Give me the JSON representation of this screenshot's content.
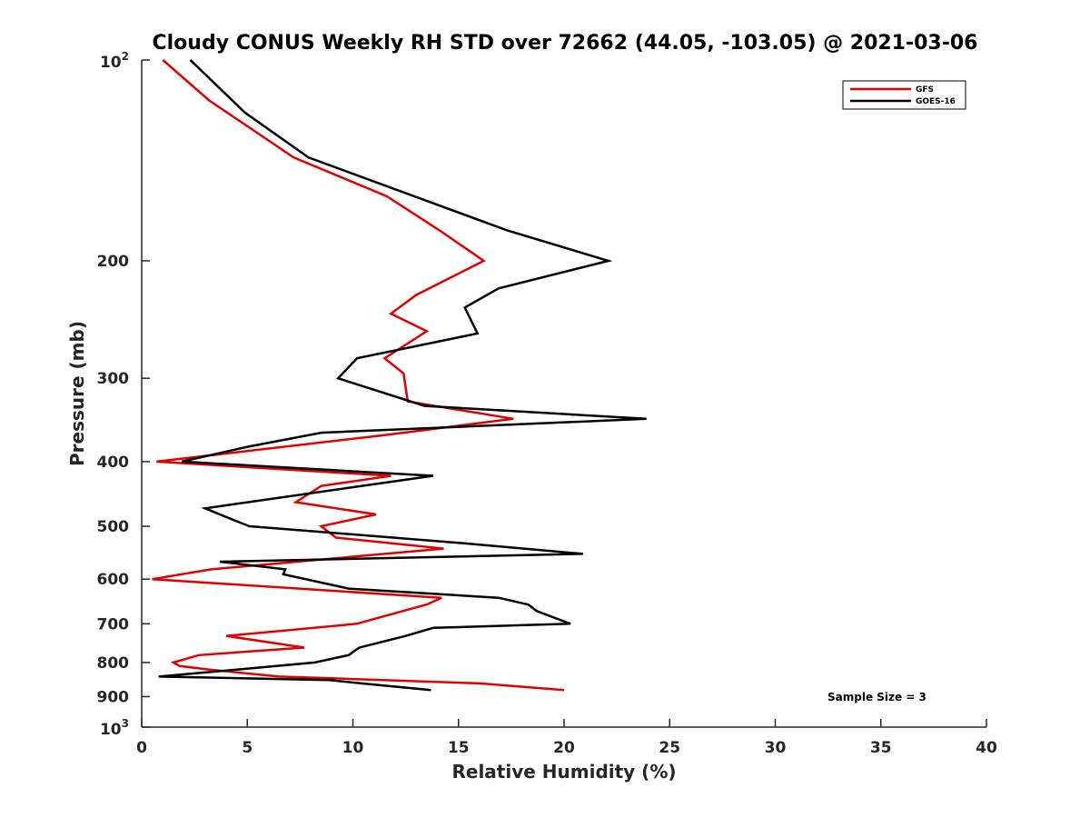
{
  "chart_data": {
    "type": "line",
    "title": "Cloudy CONUS Weekly RH STD over 72662 (44.05, -103.05) @ 2021-03-06",
    "xlabel": "Relative Humidity (%)",
    "ylabel": "Pressure (mb)",
    "xlim": [
      0,
      40
    ],
    "ylim": [
      100,
      1000
    ],
    "y_scale": "log",
    "y_reversed": true,
    "x_ticks": [
      0,
      5,
      10,
      15,
      20,
      25,
      30,
      35,
      40
    ],
    "x_tick_labels": [
      "0",
      "5",
      "10",
      "15",
      "20",
      "25",
      "30",
      "35",
      "40"
    ],
    "y_ticks": [
      200,
      300,
      400,
      500,
      600,
      700,
      800,
      900
    ],
    "y_tick_labels": [
      "200",
      "300",
      "400",
      "500",
      "600",
      "700",
      "800",
      "900"
    ],
    "y_limit_labels": [
      {
        "value": 100,
        "base": "10",
        "exp": "2"
      },
      {
        "value": 1000,
        "base": "10",
        "exp": "3"
      }
    ],
    "grid": false,
    "legend": "top-right",
    "annotation": "Sample Size = 3",
    "series": [
      {
        "name": "GFS",
        "color": "#e00000",
        "points": [
          [
            1.0,
            100
          ],
          [
            3.2,
            115
          ],
          [
            7.2,
            140
          ],
          [
            11.6,
            160
          ],
          [
            14.1,
            180
          ],
          [
            16.2,
            200
          ],
          [
            13.0,
            225
          ],
          [
            11.8,
            240
          ],
          [
            13.5,
            255
          ],
          [
            11.5,
            280
          ],
          [
            12.4,
            295
          ],
          [
            12.6,
            325
          ],
          [
            17.6,
            345
          ],
          [
            11.5,
            365
          ],
          [
            0.7,
            400
          ],
          [
            11.8,
            420
          ],
          [
            8.5,
            435
          ],
          [
            7.3,
            460
          ],
          [
            11.1,
            480
          ],
          [
            8.5,
            500
          ],
          [
            9.2,
            520
          ],
          [
            14.3,
            540
          ],
          [
            3.3,
            580
          ],
          [
            0.5,
            600
          ],
          [
            14.2,
            640
          ],
          [
            13.5,
            655
          ],
          [
            10.9,
            690
          ],
          [
            10.2,
            700
          ],
          [
            4.0,
            730
          ],
          [
            7.7,
            760
          ],
          [
            2.7,
            780
          ],
          [
            1.5,
            800
          ],
          [
            1.8,
            810
          ],
          [
            3.2,
            820
          ],
          [
            6.5,
            840
          ],
          [
            9.0,
            845
          ],
          [
            16.0,
            860
          ],
          [
            20.0,
            880
          ]
        ]
      },
      {
        "name": "GOES-16",
        "color": "#000000",
        "points": [
          [
            2.3,
            100
          ],
          [
            4.9,
            120
          ],
          [
            7.9,
            140
          ],
          [
            17.3,
            180
          ],
          [
            22.1,
            200
          ],
          [
            16.9,
            220
          ],
          [
            15.3,
            235
          ],
          [
            15.9,
            257
          ],
          [
            10.2,
            280
          ],
          [
            9.3,
            300
          ],
          [
            13.4,
            330
          ],
          [
            23.9,
            345
          ],
          [
            8.5,
            362
          ],
          [
            5.0,
            380
          ],
          [
            1.9,
            400
          ],
          [
            13.8,
            420
          ],
          [
            3.0,
            470
          ],
          [
            4.4,
            490
          ],
          [
            5.1,
            500
          ],
          [
            15.2,
            530
          ],
          [
            20.9,
            550
          ],
          [
            3.7,
            565
          ],
          [
            6.8,
            580
          ],
          [
            6.7,
            590
          ],
          [
            9.8,
            620
          ],
          [
            16.9,
            640
          ],
          [
            18.3,
            655
          ],
          [
            18.7,
            670
          ],
          [
            20.3,
            700
          ],
          [
            13.8,
            710
          ],
          [
            12.5,
            730
          ],
          [
            10.3,
            760
          ],
          [
            9.8,
            780
          ],
          [
            8.2,
            800
          ],
          [
            4.5,
            820
          ],
          [
            0.8,
            840
          ],
          [
            8.9,
            850
          ],
          [
            10.4,
            860
          ],
          [
            13.7,
            880
          ]
        ]
      }
    ]
  }
}
